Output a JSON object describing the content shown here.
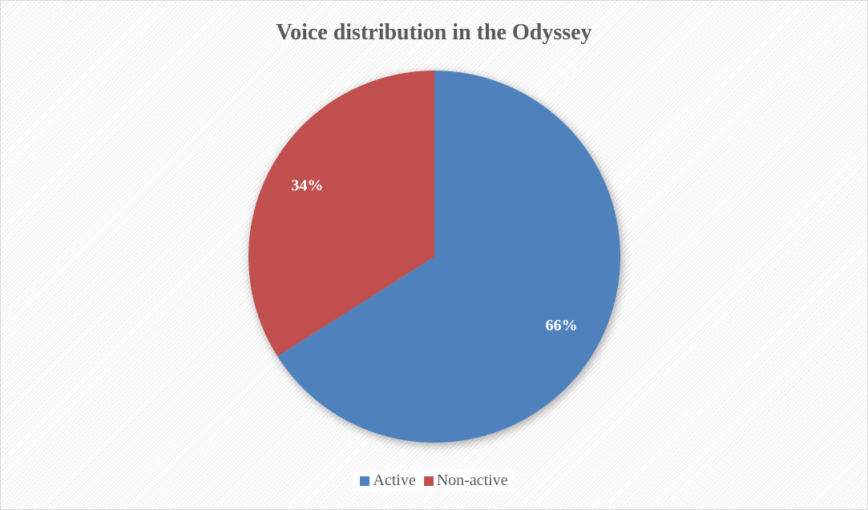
{
  "chart_data": {
    "type": "pie",
    "title": "Voice distribution in the Odyssey",
    "categories": [
      "Active",
      "Non-active"
    ],
    "values": [
      66,
      34
    ],
    "labels": [
      "66%",
      "34%"
    ],
    "colors": [
      "#4f81bd",
      "#c0504d"
    ],
    "legend_position": "bottom",
    "start_angle": "top, clockwise"
  }
}
